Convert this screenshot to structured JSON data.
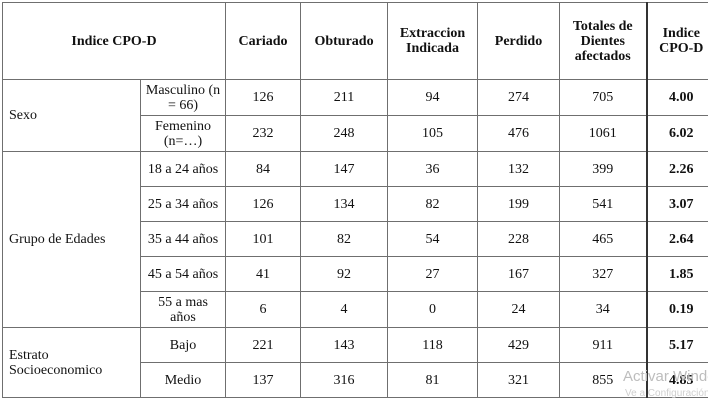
{
  "header": {
    "title": "Indice CPO-D",
    "columns": [
      "Cariado",
      "Obturado",
      "Extraccion Indicada",
      "Perdido",
      "Totales de Dientes afectados",
      "Indice CPO-D"
    ]
  },
  "groups": [
    {
      "label": "Sexo",
      "rows": [
        {
          "sub": "Masculino (n = 66)",
          "cariado": "126",
          "obturado": "211",
          "extraccion": "94",
          "perdido": "274",
          "totales": "705",
          "indice": "4.00"
        },
        {
          "sub": "Femenino (n=…)",
          "cariado": "232",
          "obturado": "248",
          "extraccion": "105",
          "perdido": "476",
          "totales": "1061",
          "indice": "6.02"
        }
      ]
    },
    {
      "label": "Grupo de Edades",
      "rows": [
        {
          "sub": "18 a 24 años",
          "cariado": "84",
          "obturado": "147",
          "extraccion": "36",
          "perdido": "132",
          "totales": "399",
          "indice": "2.26"
        },
        {
          "sub": "25 a 34 años",
          "cariado": "126",
          "obturado": "134",
          "extraccion": "82",
          "perdido": "199",
          "totales": "541",
          "indice": "3.07"
        },
        {
          "sub": "35 a 44 años",
          "cariado": "101",
          "obturado": "82",
          "extraccion": "54",
          "perdido": "228",
          "totales": "465",
          "indice": "2.64"
        },
        {
          "sub": "45 a 54 años",
          "cariado": "41",
          "obturado": "92",
          "extraccion": "27",
          "perdido": "167",
          "totales": "327",
          "indice": "1.85"
        },
        {
          "sub": "55 a mas años",
          "cariado": "6",
          "obturado": "4",
          "extraccion": "0",
          "perdido": "24",
          "totales": "34",
          "indice": "0.19"
        }
      ]
    },
    {
      "label": "Estrato Socioeconomico",
      "rows": [
        {
          "sub": "Bajo",
          "cariado": "221",
          "obturado": "143",
          "extraccion": "118",
          "perdido": "429",
          "totales": "911",
          "indice": "5.17"
        },
        {
          "sub": "Medio",
          "cariado": "137",
          "obturado": "316",
          "extraccion": "81",
          "perdido": "321",
          "totales": "855",
          "indice": "4.85"
        }
      ]
    }
  ],
  "watermark": {
    "line1": "Activar Windows",
    "line2": "Ve a Configuración"
  }
}
